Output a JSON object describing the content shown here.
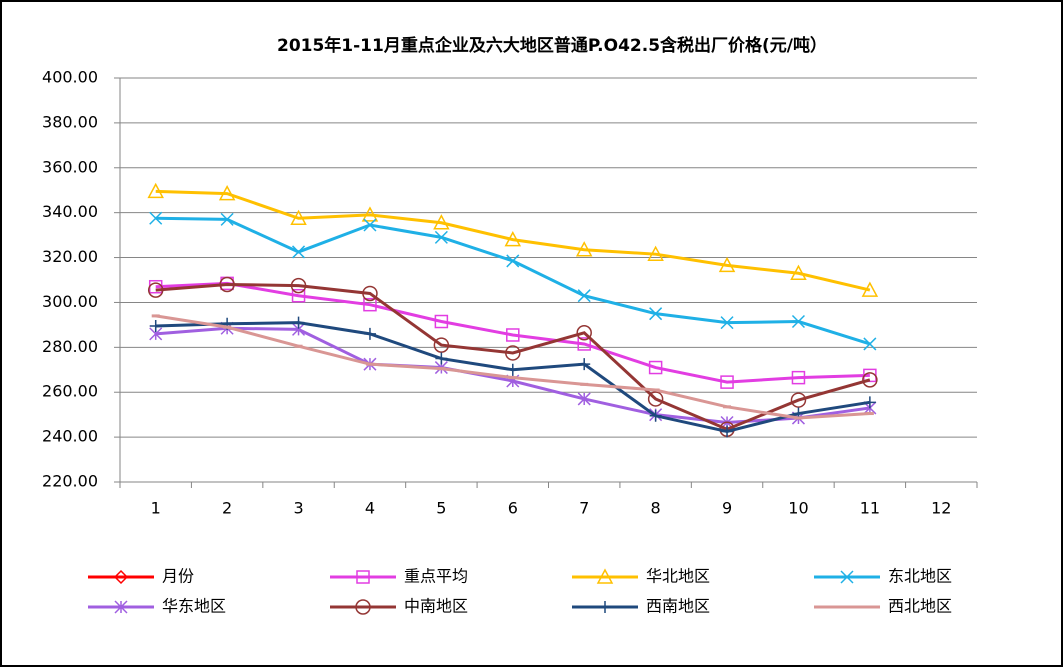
{
  "chart_data": {
    "type": "line",
    "title": "2015年1-11月重点企业及六大地区普通P.O42.5含税出厂价格(元/吨）",
    "categories": [
      "1",
      "2",
      "3",
      "4",
      "5",
      "6",
      "7",
      "8",
      "9",
      "10",
      "11",
      "12"
    ],
    "ylim": [
      220,
      400
    ],
    "yticks": [
      {
        "value": 220,
        "label": "220.00"
      },
      {
        "value": 240,
        "label": "240.00"
      },
      {
        "value": 260,
        "label": "260.00"
      },
      {
        "value": 280,
        "label": "280.00"
      },
      {
        "value": 300,
        "label": "300.00"
      },
      {
        "value": 320,
        "label": "320.00"
      },
      {
        "value": 340,
        "label": "340.00"
      },
      {
        "value": 360,
        "label": "360.00"
      },
      {
        "value": 380,
        "label": "380.00"
      },
      {
        "value": 400,
        "label": "400.00"
      }
    ],
    "grid": true,
    "legend": "bottom",
    "series": [
      {
        "name": "月份",
        "color": "#ff0000",
        "marker": "diamond",
        "values": [
          null,
          null,
          null,
          null,
          null,
          null,
          null,
          null,
          null,
          null,
          null,
          null
        ]
      },
      {
        "name": "重点平均",
        "color": "#e23de2",
        "marker": "square",
        "values": [
          307,
          308.5,
          303,
          299,
          291.5,
          285.5,
          281.5,
          271,
          264.5,
          266.5,
          267.5,
          null
        ]
      },
      {
        "name": "华北地区",
        "color": "#ffc000",
        "marker": "triangle",
        "values": [
          349.5,
          348.5,
          337.5,
          339,
          335.5,
          328,
          323.5,
          321.5,
          316.5,
          313,
          305.5,
          null
        ]
      },
      {
        "name": "东北地区",
        "color": "#1fb0e6",
        "marker": "x",
        "values": [
          337.5,
          337,
          322.5,
          334.5,
          329,
          318.5,
          303,
          295,
          291,
          291.5,
          281.5,
          null
        ]
      },
      {
        "name": "华东地区",
        "color": "#a05fe0",
        "marker": "star",
        "values": [
          286,
          288.5,
          288,
          272.5,
          271,
          265,
          257,
          250,
          246.5,
          248.5,
          253,
          null
        ]
      },
      {
        "name": "中南地区",
        "color": "#943634",
        "marker": "circle",
        "values": [
          305.5,
          308,
          307.5,
          304,
          281,
          277.5,
          286.5,
          257,
          243.5,
          256.5,
          265.5,
          null
        ]
      },
      {
        "name": "西南地区",
        "color": "#1f497d",
        "marker": "plus",
        "values": [
          289.5,
          290.5,
          291,
          286,
          275,
          270,
          272.5,
          249.5,
          242.5,
          250.5,
          255.5,
          null
        ]
      },
      {
        "name": "西北地区",
        "color": "#d99694",
        "marker": "dash",
        "values": [
          294,
          289,
          280.5,
          272.5,
          270.5,
          266.5,
          263.5,
          261,
          253.5,
          248.5,
          250.5,
          null
        ]
      }
    ]
  }
}
